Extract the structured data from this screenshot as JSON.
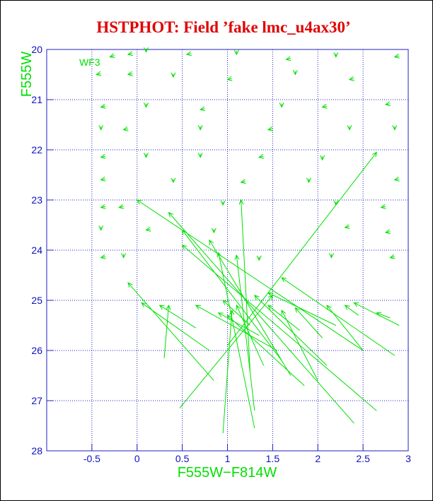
{
  "chart_data": {
    "type": "quiver",
    "title": "HSTPHOT: Field ’fake lmc_u4ax30’",
    "annotation": "WF3",
    "x_label": "F555W−F814W",
    "y_label": "F555W",
    "xlim": [
      -1,
      3
    ],
    "ylim": [
      28,
      20
    ],
    "xticks": [
      -0.5,
      0,
      0.5,
      1,
      1.5,
      2,
      2.5,
      3
    ],
    "yticks": [
      20,
      21,
      22,
      23,
      24,
      25,
      26,
      27,
      28
    ],
    "grid": true,
    "color": "#00e000",
    "arrows": [
      {
        "x": -0.25,
        "y": 20.12,
        "x_end": -0.3,
        "y_end": 20.15
      },
      {
        "x": -0.05,
        "y": 20.08,
        "x_end": -0.1,
        "y_end": 20.1
      },
      {
        "x": 0.1,
        "y": 19.98,
        "x_end": 0.1,
        "y_end": 20.05
      },
      {
        "x": 0.6,
        "y": 20.08,
        "x_end": 0.55,
        "y_end": 20.1
      },
      {
        "x": 1.1,
        "y": 20.03,
        "x_end": 1.1,
        "y_end": 20.1
      },
      {
        "x": 1.7,
        "y": 20.18,
        "x_end": 1.65,
        "y_end": 20.2
      },
      {
        "x": 2.2,
        "y": 20.08,
        "x_end": 2.2,
        "y_end": 20.15
      },
      {
        "x": 2.9,
        "y": 20.13,
        "x_end": 2.85,
        "y_end": 20.15
      },
      {
        "x": -0.4,
        "y": 20.48,
        "x_end": -0.45,
        "y_end": 20.5
      },
      {
        "x": -0.05,
        "y": 20.48,
        "x_end": -0.1,
        "y_end": 20.5
      },
      {
        "x": 0.4,
        "y": 20.48,
        "x_end": 0.4,
        "y_end": 20.55
      },
      {
        "x": 1.05,
        "y": 20.58,
        "x_end": 1.0,
        "y_end": 20.6
      },
      {
        "x": 1.75,
        "y": 20.43,
        "x_end": 1.75,
        "y_end": 20.5
      },
      {
        "x": 2.4,
        "y": 20.58,
        "x_end": 2.35,
        "y_end": 20.6
      },
      {
        "x": -0.35,
        "y": 21.13,
        "x_end": -0.4,
        "y_end": 21.15
      },
      {
        "x": 0.1,
        "y": 21.08,
        "x_end": 0.1,
        "y_end": 21.15
      },
      {
        "x": 0.75,
        "y": 21.18,
        "x_end": 0.7,
        "y_end": 21.2
      },
      {
        "x": 1.6,
        "y": 21.08,
        "x_end": 1.6,
        "y_end": 21.15
      },
      {
        "x": 2.1,
        "y": 21.13,
        "x_end": 2.05,
        "y_end": 21.15
      },
      {
        "x": 2.8,
        "y": 21.08,
        "x_end": 2.75,
        "y_end": 21.1
      },
      {
        "x": -0.4,
        "y": 21.53,
        "x_end": -0.4,
        "y_end": 21.6
      },
      {
        "x": -0.1,
        "y": 21.58,
        "x_end": -0.15,
        "y_end": 21.6
      },
      {
        "x": 0.7,
        "y": 21.53,
        "x_end": 0.7,
        "y_end": 21.6
      },
      {
        "x": 1.5,
        "y": 21.58,
        "x_end": 1.45,
        "y_end": 21.6
      },
      {
        "x": 2.35,
        "y": 21.53,
        "x_end": 2.35,
        "y_end": 21.6
      },
      {
        "x": 2.85,
        "y": 21.53,
        "x_end": 2.85,
        "y_end": 21.6
      },
      {
        "x": -0.35,
        "y": 22.13,
        "x_end": -0.4,
        "y_end": 22.15
      },
      {
        "x": 0.1,
        "y": 22.08,
        "x_end": 0.1,
        "y_end": 22.15
      },
      {
        "x": 0.7,
        "y": 22.08,
        "x_end": 0.7,
        "y_end": 22.15
      },
      {
        "x": 1.4,
        "y": 22.13,
        "x_end": 1.35,
        "y_end": 22.15
      },
      {
        "x": 2.05,
        "y": 22.13,
        "x_end": 2.05,
        "y_end": 22.2
      },
      {
        "x": -0.35,
        "y": 22.58,
        "x_end": -0.4,
        "y_end": 22.6
      },
      {
        "x": 0.4,
        "y": 22.58,
        "x_end": 0.4,
        "y_end": 22.65
      },
      {
        "x": 1.2,
        "y": 22.63,
        "x_end": 1.15,
        "y_end": 22.65
      },
      {
        "x": 1.9,
        "y": 22.58,
        "x_end": 1.9,
        "y_end": 22.65
      },
      {
        "x": 2.9,
        "y": 22.58,
        "x_end": 2.85,
        "y_end": 22.6
      },
      {
        "x": -0.35,
        "y": 23.13,
        "x_end": -0.4,
        "y_end": 23.15
      },
      {
        "x": -0.15,
        "y": 23.13,
        "x_end": -0.2,
        "y_end": 23.15
      },
      {
        "x": 0.95,
        "y": 23.03,
        "x_end": 0.95,
        "y_end": 23.1
      },
      {
        "x": 2.2,
        "y": 23.03,
        "x_end": 2.2,
        "y_end": 23.1
      },
      {
        "x": 2.75,
        "y": 23.13,
        "x_end": 2.7,
        "y_end": 23.15
      },
      {
        "x": -0.4,
        "y": 23.53,
        "x_end": -0.4,
        "y_end": 23.6
      },
      {
        "x": 0.15,
        "y": 23.58,
        "x_end": 0.1,
        "y_end": 23.6
      },
      {
        "x": 0.85,
        "y": 23.58,
        "x_end": 0.85,
        "y_end": 23.65
      },
      {
        "x": 2.35,
        "y": 23.53,
        "x_end": 2.3,
        "y_end": 23.55
      },
      {
        "x": 2.8,
        "y": 23.63,
        "x_end": 2.75,
        "y_end": 23.65
      },
      {
        "x": -0.35,
        "y": 24.13,
        "x_end": -0.4,
        "y_end": 24.15
      },
      {
        "x": -0.15,
        "y": 24.08,
        "x_end": -0.15,
        "y_end": 24.15
      },
      {
        "x": 1.35,
        "y": 24.13,
        "x_end": 1.35,
        "y_end": 24.2
      },
      {
        "x": 2.15,
        "y": 24.08,
        "x_end": 2.15,
        "y_end": 24.15
      },
      {
        "x": 2.85,
        "y": 24.13,
        "x_end": 2.8,
        "y_end": 24.15
      },
      {
        "x": 1.0,
        "y": 25.9,
        "x_end": 2.65,
        "y_end": 22.05
      },
      {
        "x": 0.47,
        "y": 27.15,
        "x_end": 1.5,
        "y_end": 24.9
      },
      {
        "x": 2.5,
        "y": 26.0,
        "x_end": 0.0,
        "y_end": 23.0
      },
      {
        "x": 1.25,
        "y": 26.4,
        "x_end": 1.15,
        "y_end": 23.0
      },
      {
        "x": 2.65,
        "y": 27.2,
        "x_end": 0.5,
        "y_end": 23.9
      },
      {
        "x": 2.4,
        "y": 27.45,
        "x_end": 0.35,
        "y_end": 23.25
      },
      {
        "x": 1.7,
        "y": 26.5,
        "x_end": 0.8,
        "y_end": 23.8
      },
      {
        "x": 1.3,
        "y": 27.55,
        "x_end": 0.9,
        "y_end": 24.05
      },
      {
        "x": 1.3,
        "y": 27.2,
        "x_end": 1.1,
        "y_end": 24.1
      },
      {
        "x": 0.85,
        "y": 26.6,
        "x_end": -0.1,
        "y_end": 24.65
      },
      {
        "x": 0.8,
        "y": 26.0,
        "x_end": 0.05,
        "y_end": 25.05
      },
      {
        "x": 0.3,
        "y": 26.15,
        "x_end": 0.35,
        "y_end": 25.1
      },
      {
        "x": 2.85,
        "y": 26.1,
        "x_end": 1.6,
        "y_end": 24.55
      },
      {
        "x": 2.5,
        "y": 26.0,
        "x_end": 2.1,
        "y_end": 25.1
      },
      {
        "x": 2.9,
        "y": 25.5,
        "x_end": 2.4,
        "y_end": 25.05
      },
      {
        "x": 2.8,
        "y": 25.35,
        "x_end": 2.65,
        "y_end": 25.25
      },
      {
        "x": 2.1,
        "y": 26.3,
        "x_end": 1.3,
        "y_end": 24.9
      },
      {
        "x": 2.0,
        "y": 26.6,
        "x_end": 1.6,
        "y_end": 25.2
      },
      {
        "x": 1.85,
        "y": 26.7,
        "x_end": 1.0,
        "y_end": 25.3
      },
      {
        "x": 0.95,
        "y": 27.65,
        "x_end": 1.05,
        "y_end": 25.2
      },
      {
        "x": 1.55,
        "y": 26.0,
        "x_end": 0.65,
        "y_end": 25.1
      },
      {
        "x": 1.35,
        "y": 25.7,
        "x_end": 0.9,
        "y_end": 25.25
      },
      {
        "x": 1.8,
        "y": 25.6,
        "x_end": 1.45,
        "y_end": 25.1
      },
      {
        "x": 2.05,
        "y": 25.75,
        "x_end": 1.75,
        "y_end": 25.15
      },
      {
        "x": 1.4,
        "y": 26.3,
        "x_end": 1.1,
        "y_end": 25.1
      },
      {
        "x": 0.65,
        "y": 25.55,
        "x_end": 0.25,
        "y_end": 25.1
      },
      {
        "x": 1.25,
        "y": 25.5,
        "x_end": 0.95,
        "y_end": 25.0
      },
      {
        "x": 2.2,
        "y": 25.5,
        "x_end": 1.45,
        "y_end": 24.85
      },
      {
        "x": 2.45,
        "y": 25.3,
        "x_end": 2.3,
        "y_end": 25.1
      },
      {
        "x": 1.6,
        "y": 26.2,
        "x_end": 0.5,
        "y_end": 23.6
      }
    ]
  }
}
